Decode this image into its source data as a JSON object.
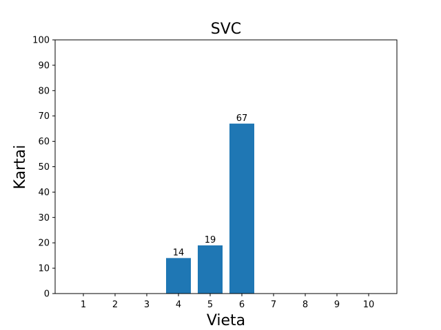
{
  "chart_data": {
    "type": "bar",
    "title": "SVC",
    "xlabel": "Vieta",
    "ylabel": "Kartai",
    "categories": [
      "1",
      "2",
      "3",
      "4",
      "5",
      "6",
      "7",
      "8",
      "9",
      "10"
    ],
    "values": [
      0,
      0,
      0,
      14,
      19,
      67,
      0,
      0,
      0,
      0
    ],
    "data_labels": [
      "",
      "",
      "",
      "14",
      "19",
      "67",
      "",
      "",
      "",
      ""
    ],
    "ylim": [
      0,
      100
    ],
    "yticks": [
      0,
      10,
      20,
      30,
      40,
      50,
      60,
      70,
      80,
      90,
      100
    ],
    "bar_color": "#1f77b4",
    "grid": false
  }
}
